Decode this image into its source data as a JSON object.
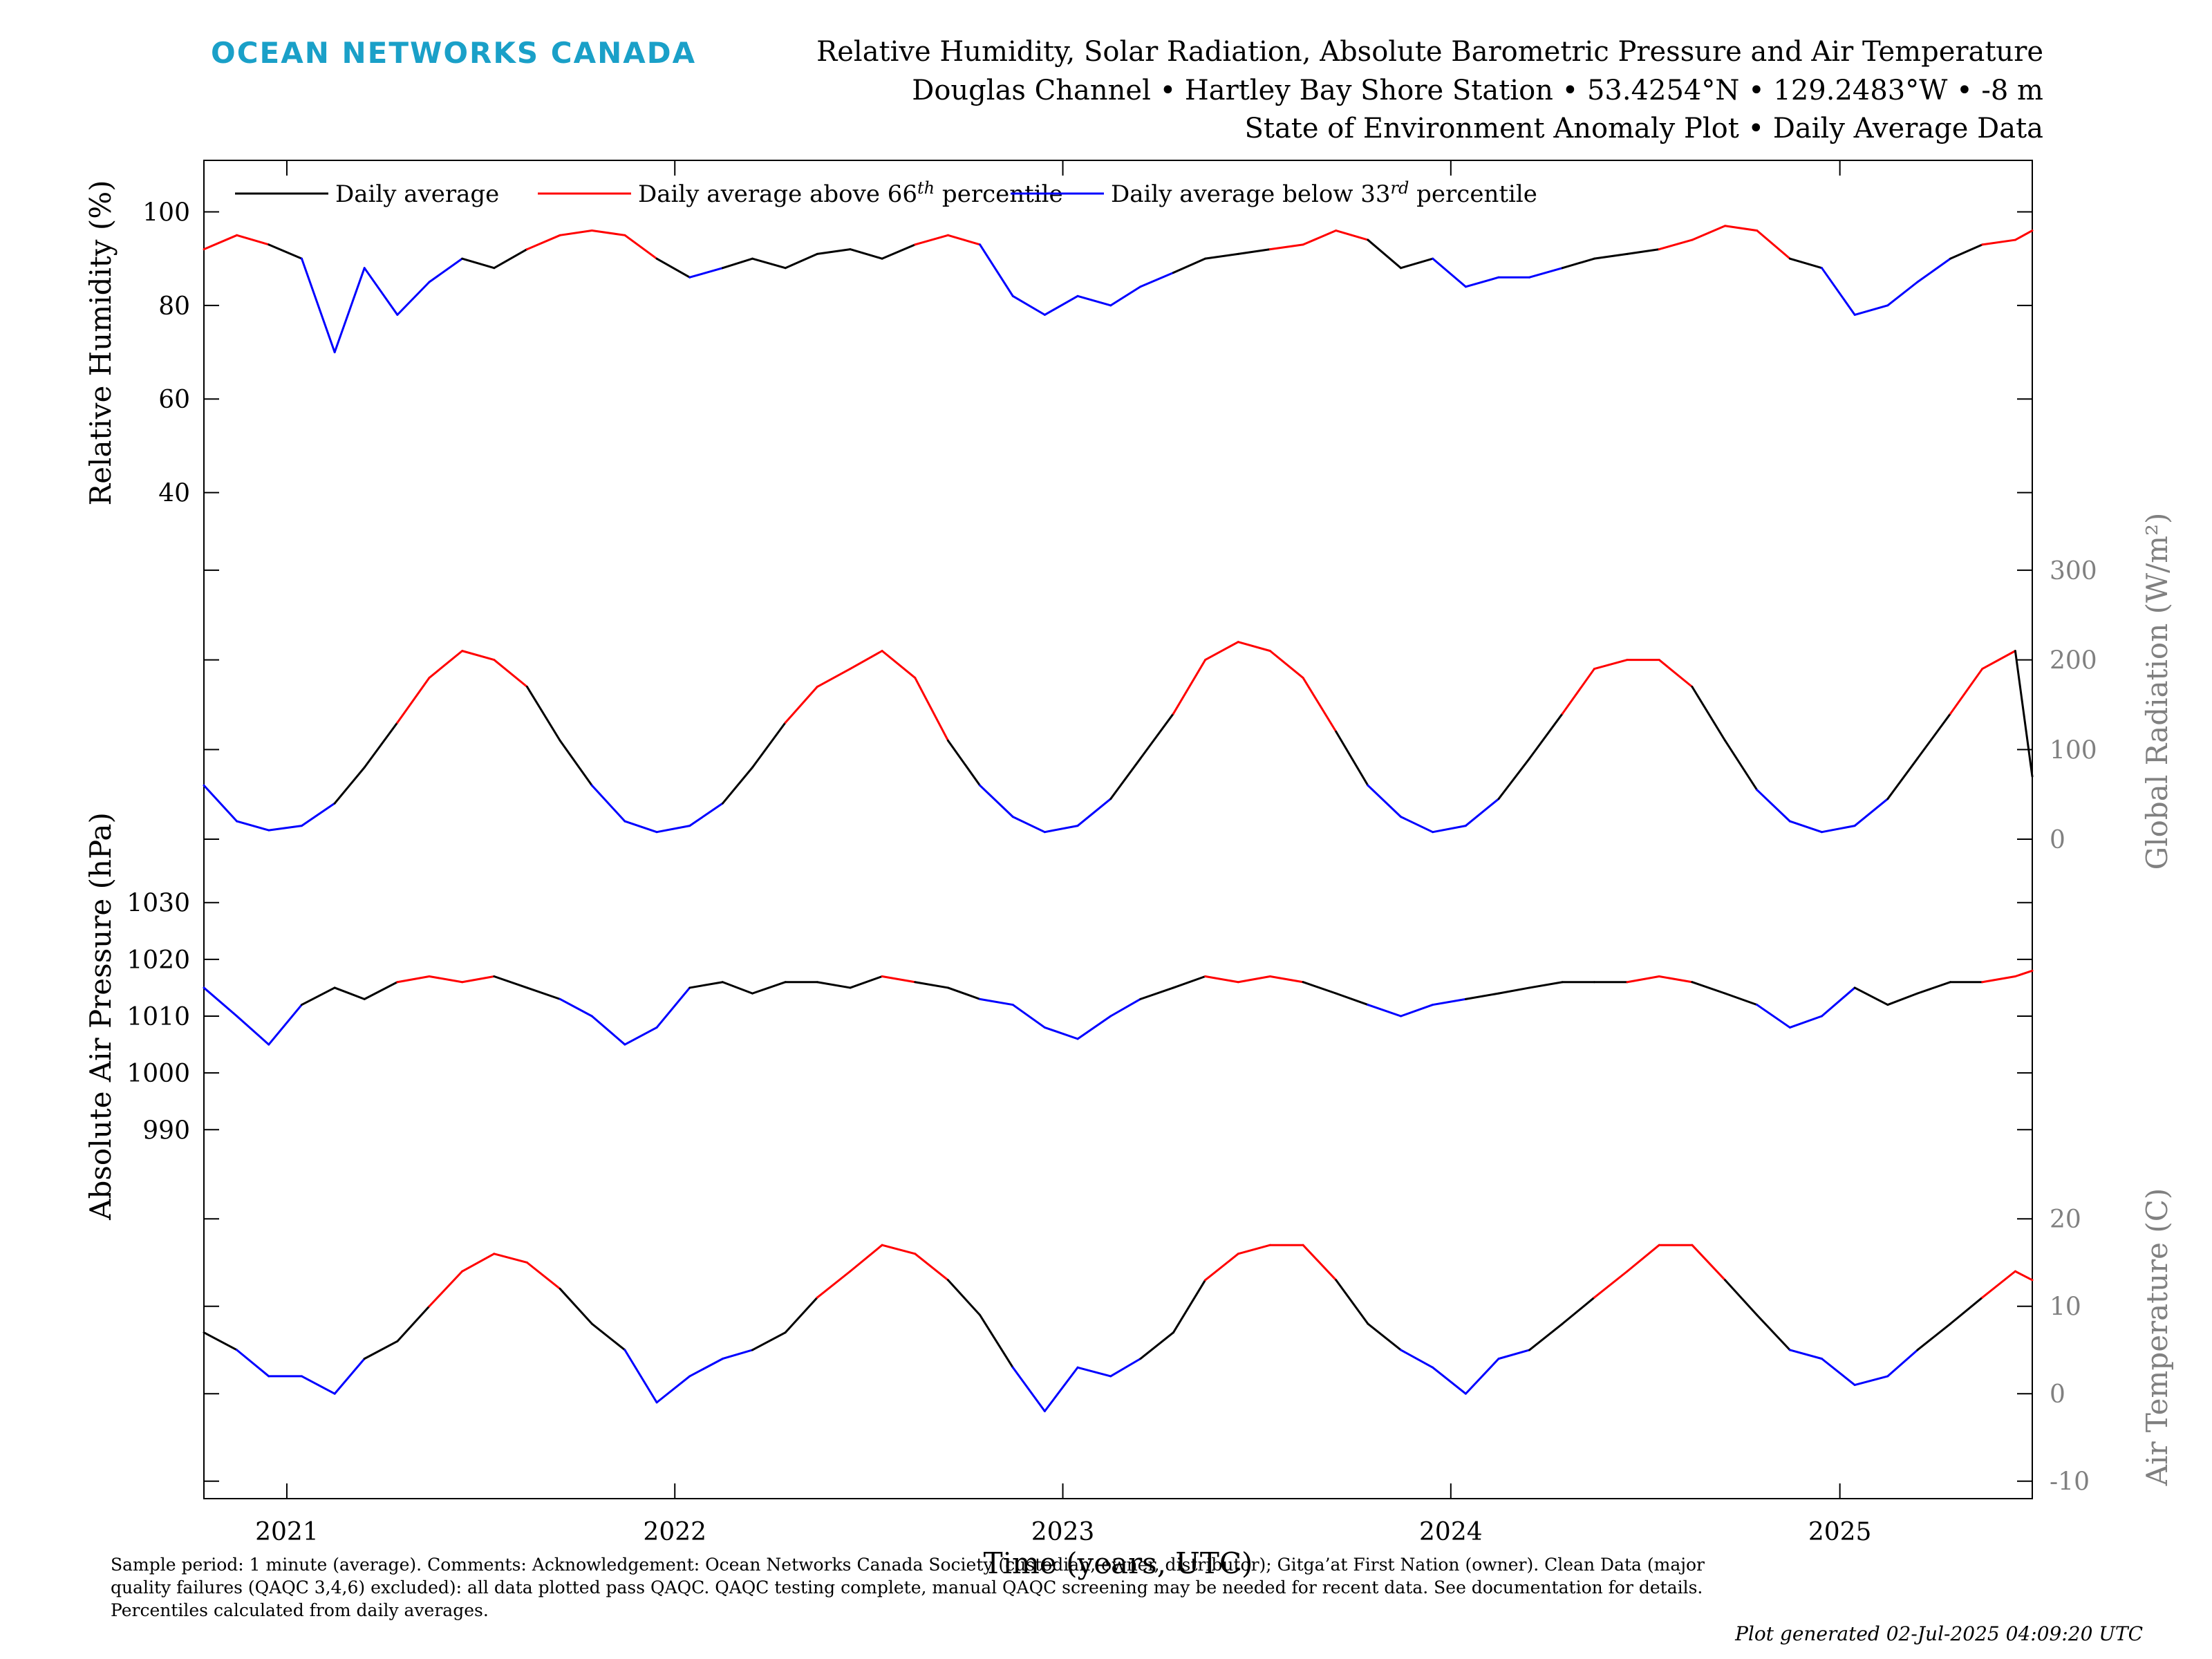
{
  "header": {
    "brand": "OCEAN NETWORKS CANADA",
    "title_line1": "Relative Humidity, Solar Radiation, Absolute Barometric Pressure and Air Temperature",
    "title_line2": "Douglas Channel • Hartley Bay Shore Station • 53.4254°N • 129.2483°W • -8 m",
    "title_line3": "State of Environment Anomaly Plot • Daily Average Data"
  },
  "legend": {
    "entries": [
      {
        "prefix": "Daily average",
        "sup": "",
        "suffix": "",
        "color": "#000000"
      },
      {
        "prefix": "Daily average above 66",
        "sup": "th",
        "suffix": " percentile",
        "color": "#ff0000"
      },
      {
        "prefix": "Daily average below 33",
        "sup": "rd",
        "suffix": " percentile",
        "color": "#0000ff"
      }
    ]
  },
  "footer": {
    "text": "Sample period: 1 minute (average). Comments: Acknowledgement: Ocean Networks Canada Society (custodian, owner, distributor); Gitga’at First Nation (owner). Clean Data (major quality failures (QAQC 3,4,6) excluded): all data plotted pass QAQC. QAQC testing complete, manual QAQC screening may be needed for recent data. See documentation for details. Percentiles calculated from daily averages.",
    "generated": "Plot generated 02-Jul-2025 04:09:20 UTC"
  },
  "colors": {
    "normal": "#000000",
    "above": "#ff0000",
    "below": "#0000ff",
    "right_axis": "#808080",
    "brand": "#1aa0c8"
  },
  "chart_data": {
    "type": "line",
    "x_axis": {
      "label": "Time (years, UTC)",
      "start": "2020-10-15",
      "end": "2025-07-01",
      "ticks": [
        "2021",
        "2022",
        "2023",
        "2024",
        "2025"
      ]
    },
    "panels": [
      {
        "id": "humidity",
        "ylabel": "Relative Humidity (%)",
        "axis_side": "left",
        "ylim": [
          33,
          111
        ],
        "ticks": [
          40,
          60,
          80,
          100
        ],
        "series": [
          [
            "2020-10-15",
            92
          ],
          [
            "2020-11-15",
            95
          ],
          [
            "2020-12-15",
            93
          ],
          [
            "2021-01-15",
            90
          ],
          [
            "2021-02-15",
            70
          ],
          [
            "2021-03-15",
            88
          ],
          [
            "2021-04-15",
            78
          ],
          [
            "2021-05-15",
            85
          ],
          [
            "2021-06-15",
            90
          ],
          [
            "2021-07-15",
            88
          ],
          [
            "2021-08-15",
            92
          ],
          [
            "2021-09-15",
            95
          ],
          [
            "2021-10-15",
            96
          ],
          [
            "2021-11-15",
            95
          ],
          [
            "2021-12-15",
            90
          ],
          [
            "2022-01-15",
            86
          ],
          [
            "2022-02-15",
            88
          ],
          [
            "2022-03-15",
            90
          ],
          [
            "2022-04-15",
            88
          ],
          [
            "2022-05-15",
            91
          ],
          [
            "2022-06-15",
            92
          ],
          [
            "2022-07-15",
            90
          ],
          [
            "2022-08-15",
            93
          ],
          [
            "2022-09-15",
            95
          ],
          [
            "2022-10-15",
            93
          ],
          [
            "2022-11-15",
            82
          ],
          [
            "2022-12-15",
            78
          ],
          [
            "2023-01-15",
            82
          ],
          [
            "2023-02-15",
            80
          ],
          [
            "2023-03-15",
            84
          ],
          [
            "2023-04-15",
            87
          ],
          [
            "2023-05-15",
            90
          ],
          [
            "2023-06-15",
            91
          ],
          [
            "2023-07-15",
            92
          ],
          [
            "2023-08-15",
            93
          ],
          [
            "2023-09-15",
            96
          ],
          [
            "2023-10-15",
            94
          ],
          [
            "2023-11-15",
            88
          ],
          [
            "2023-12-15",
            90
          ],
          [
            "2024-01-15",
            84
          ],
          [
            "2024-02-15",
            86
          ],
          [
            "2024-03-15",
            86
          ],
          [
            "2024-04-15",
            88
          ],
          [
            "2024-05-15",
            90
          ],
          [
            "2024-06-15",
            91
          ],
          [
            "2024-07-15",
            92
          ],
          [
            "2024-08-15",
            94
          ],
          [
            "2024-09-15",
            97
          ],
          [
            "2024-10-15",
            96
          ],
          [
            "2024-11-15",
            90
          ],
          [
            "2024-12-15",
            88
          ],
          [
            "2025-01-15",
            78
          ],
          [
            "2025-02-15",
            80
          ],
          [
            "2025-03-15",
            85
          ],
          [
            "2025-04-15",
            90
          ],
          [
            "2025-05-15",
            93
          ],
          [
            "2025-06-15",
            94
          ],
          [
            "2025-07-01",
            96
          ]
        ]
      },
      {
        "id": "radiation",
        "ylabel": "Global Radiation (W/m²)",
        "axis_side": "right",
        "ylim": [
          -20,
          350
        ],
        "ticks": [
          0,
          100,
          200,
          300
        ],
        "series": [
          [
            "2020-10-15",
            60
          ],
          [
            "2020-11-15",
            20
          ],
          [
            "2020-12-15",
            10
          ],
          [
            "2021-01-15",
            15
          ],
          [
            "2021-02-15",
            40
          ],
          [
            "2021-03-15",
            80
          ],
          [
            "2021-04-15",
            130
          ],
          [
            "2021-05-15",
            180
          ],
          [
            "2021-06-15",
            210
          ],
          [
            "2021-07-15",
            200
          ],
          [
            "2021-08-15",
            170
          ],
          [
            "2021-09-15",
            110
          ],
          [
            "2021-10-15",
            60
          ],
          [
            "2021-11-15",
            20
          ],
          [
            "2021-12-15",
            8
          ],
          [
            "2022-01-15",
            15
          ],
          [
            "2022-02-15",
            40
          ],
          [
            "2022-03-15",
            80
          ],
          [
            "2022-04-15",
            130
          ],
          [
            "2022-05-15",
            170
          ],
          [
            "2022-06-15",
            190
          ],
          [
            "2022-07-15",
            210
          ],
          [
            "2022-08-15",
            180
          ],
          [
            "2022-09-15",
            110
          ],
          [
            "2022-10-15",
            60
          ],
          [
            "2022-11-15",
            25
          ],
          [
            "2022-12-15",
            8
          ],
          [
            "2023-01-15",
            15
          ],
          [
            "2023-02-15",
            45
          ],
          [
            "2023-03-15",
            90
          ],
          [
            "2023-04-15",
            140
          ],
          [
            "2023-05-15",
            200
          ],
          [
            "2023-06-15",
            220
          ],
          [
            "2023-07-15",
            210
          ],
          [
            "2023-08-15",
            180
          ],
          [
            "2023-09-15",
            120
          ],
          [
            "2023-10-15",
            60
          ],
          [
            "2023-11-15",
            25
          ],
          [
            "2023-12-15",
            8
          ],
          [
            "2024-01-15",
            15
          ],
          [
            "2024-02-15",
            45
          ],
          [
            "2024-03-15",
            90
          ],
          [
            "2024-04-15",
            140
          ],
          [
            "2024-05-15",
            190
          ],
          [
            "2024-06-15",
            200
          ],
          [
            "2024-07-15",
            200
          ],
          [
            "2024-08-15",
            170
          ],
          [
            "2024-09-15",
            110
          ],
          [
            "2024-10-15",
            55
          ],
          [
            "2024-11-15",
            20
          ],
          [
            "2024-12-15",
            8
          ],
          [
            "2025-01-15",
            15
          ],
          [
            "2025-02-15",
            45
          ],
          [
            "2025-03-15",
            90
          ],
          [
            "2025-04-15",
            140
          ],
          [
            "2025-05-15",
            190
          ],
          [
            "2025-06-15",
            210
          ],
          [
            "2025-07-01",
            70
          ]
        ]
      },
      {
        "id": "pressure",
        "ylabel": "Absolute Air Pressure (hPa)",
        "axis_side": "left",
        "ylim": [
          982,
          1038
        ],
        "ticks": [
          990,
          1000,
          1010,
          1020,
          1030
        ],
        "series": [
          [
            "2020-10-15",
            1015
          ],
          [
            "2020-11-15",
            1010
          ],
          [
            "2020-12-15",
            1005
          ],
          [
            "2021-01-15",
            1012
          ],
          [
            "2021-02-15",
            1015
          ],
          [
            "2021-03-15",
            1013
          ],
          [
            "2021-04-15",
            1016
          ],
          [
            "2021-05-15",
            1017
          ],
          [
            "2021-06-15",
            1016
          ],
          [
            "2021-07-15",
            1017
          ],
          [
            "2021-08-15",
            1015
          ],
          [
            "2021-09-15",
            1013
          ],
          [
            "2021-10-15",
            1010
          ],
          [
            "2021-11-15",
            1005
          ],
          [
            "2021-12-15",
            1008
          ],
          [
            "2022-01-15",
            1015
          ],
          [
            "2022-02-15",
            1016
          ],
          [
            "2022-03-15",
            1014
          ],
          [
            "2022-04-15",
            1016
          ],
          [
            "2022-05-15",
            1016
          ],
          [
            "2022-06-15",
            1015
          ],
          [
            "2022-07-15",
            1017
          ],
          [
            "2022-08-15",
            1016
          ],
          [
            "2022-09-15",
            1015
          ],
          [
            "2022-10-15",
            1013
          ],
          [
            "2022-11-15",
            1012
          ],
          [
            "2022-12-15",
            1008
          ],
          [
            "2023-01-15",
            1006
          ],
          [
            "2023-02-15",
            1010
          ],
          [
            "2023-03-15",
            1013
          ],
          [
            "2023-04-15",
            1015
          ],
          [
            "2023-05-15",
            1017
          ],
          [
            "2023-06-15",
            1016
          ],
          [
            "2023-07-15",
            1017
          ],
          [
            "2023-08-15",
            1016
          ],
          [
            "2023-09-15",
            1014
          ],
          [
            "2023-10-15",
            1012
          ],
          [
            "2023-11-15",
            1010
          ],
          [
            "2023-12-15",
            1012
          ],
          [
            "2024-01-15",
            1013
          ],
          [
            "2024-02-15",
            1014
          ],
          [
            "2024-03-15",
            1015
          ],
          [
            "2024-04-15",
            1016
          ],
          [
            "2024-05-15",
            1016
          ],
          [
            "2024-06-15",
            1016
          ],
          [
            "2024-07-15",
            1017
          ],
          [
            "2024-08-15",
            1016
          ],
          [
            "2024-09-15",
            1014
          ],
          [
            "2024-10-15",
            1012
          ],
          [
            "2024-11-15",
            1008
          ],
          [
            "2024-12-15",
            1010
          ],
          [
            "2025-01-15",
            1015
          ],
          [
            "2025-02-15",
            1012
          ],
          [
            "2025-03-15",
            1014
          ],
          [
            "2025-04-15",
            1016
          ],
          [
            "2025-05-15",
            1016
          ],
          [
            "2025-06-15",
            1017
          ],
          [
            "2025-07-01",
            1018
          ]
        ]
      },
      {
        "id": "temperature",
        "ylabel": "Air Temperature (C)",
        "axis_side": "right",
        "ylim": [
          -12,
          25
        ],
        "ticks": [
          -10,
          0,
          10,
          20
        ],
        "series": [
          [
            "2020-10-15",
            7
          ],
          [
            "2020-11-15",
            5
          ],
          [
            "2020-12-15",
            2
          ],
          [
            "2021-01-15",
            2
          ],
          [
            "2021-02-15",
            0
          ],
          [
            "2021-03-15",
            4
          ],
          [
            "2021-04-15",
            6
          ],
          [
            "2021-05-15",
            10
          ],
          [
            "2021-06-15",
            14
          ],
          [
            "2021-07-15",
            16
          ],
          [
            "2021-08-15",
            15
          ],
          [
            "2021-09-15",
            12
          ],
          [
            "2021-10-15",
            8
          ],
          [
            "2021-11-15",
            5
          ],
          [
            "2021-12-15",
            -1
          ],
          [
            "2022-01-15",
            2
          ],
          [
            "2022-02-15",
            4
          ],
          [
            "2022-03-15",
            5
          ],
          [
            "2022-04-15",
            7
          ],
          [
            "2022-05-15",
            11
          ],
          [
            "2022-06-15",
            14
          ],
          [
            "2022-07-15",
            17
          ],
          [
            "2022-08-15",
            16
          ],
          [
            "2022-09-15",
            13
          ],
          [
            "2022-10-15",
            9
          ],
          [
            "2022-11-15",
            3
          ],
          [
            "2022-12-15",
            -2
          ],
          [
            "2023-01-15",
            3
          ],
          [
            "2023-02-15",
            2
          ],
          [
            "2023-03-15",
            4
          ],
          [
            "2023-04-15",
            7
          ],
          [
            "2023-05-15",
            13
          ],
          [
            "2023-06-15",
            16
          ],
          [
            "2023-07-15",
            17
          ],
          [
            "2023-08-15",
            17
          ],
          [
            "2023-09-15",
            13
          ],
          [
            "2023-10-15",
            8
          ],
          [
            "2023-11-15",
            5
          ],
          [
            "2023-12-15",
            3
          ],
          [
            "2024-01-15",
            0
          ],
          [
            "2024-02-15",
            4
          ],
          [
            "2024-03-15",
            5
          ],
          [
            "2024-04-15",
            8
          ],
          [
            "2024-05-15",
            11
          ],
          [
            "2024-06-15",
            14
          ],
          [
            "2024-07-15",
            17
          ],
          [
            "2024-08-15",
            17
          ],
          [
            "2024-09-15",
            13
          ],
          [
            "2024-10-15",
            9
          ],
          [
            "2024-11-15",
            5
          ],
          [
            "2024-12-15",
            4
          ],
          [
            "2025-01-15",
            1
          ],
          [
            "2025-02-15",
            2
          ],
          [
            "2025-03-15",
            5
          ],
          [
            "2025-04-15",
            8
          ],
          [
            "2025-05-15",
            11
          ],
          [
            "2025-06-15",
            14
          ],
          [
            "2025-07-01",
            13
          ]
        ]
      }
    ]
  }
}
